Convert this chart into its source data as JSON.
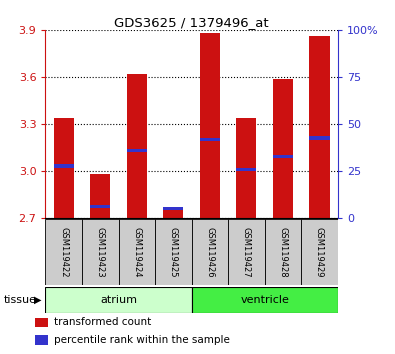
{
  "title": "GDS3625 / 1379496_at",
  "samples": [
    "GSM119422",
    "GSM119423",
    "GSM119424",
    "GSM119425",
    "GSM119426",
    "GSM119427",
    "GSM119428",
    "GSM119429"
  ],
  "red_values": [
    3.34,
    2.98,
    3.62,
    2.77,
    3.88,
    3.34,
    3.59,
    3.86
  ],
  "blue_values": [
    3.03,
    2.77,
    3.13,
    2.76,
    3.2,
    3.01,
    3.09,
    3.21
  ],
  "ymin": 2.7,
  "ymax": 3.9,
  "yticks_left": [
    2.7,
    3.0,
    3.3,
    3.6,
    3.9
  ],
  "yticks_right": [
    0,
    25,
    50,
    75,
    100
  ],
  "bar_base": 2.7,
  "bar_width": 0.55,
  "red_color": "#cc1111",
  "blue_color": "#3333cc",
  "tissue_groups": [
    {
      "label": "atrium",
      "start": 0,
      "end": 3,
      "color": "#ccffcc"
    },
    {
      "label": "ventricle",
      "start": 4,
      "end": 7,
      "color": "#44ee44"
    }
  ],
  "tissue_label": "tissue",
  "legend_items": [
    {
      "label": "transformed count",
      "color": "#cc1111"
    },
    {
      "label": "percentile rank within the sample",
      "color": "#3333cc"
    }
  ],
  "sample_box_color": "#cccccc",
  "atrium_color": "#ccffcc",
  "ventricle_color": "#44ee44"
}
